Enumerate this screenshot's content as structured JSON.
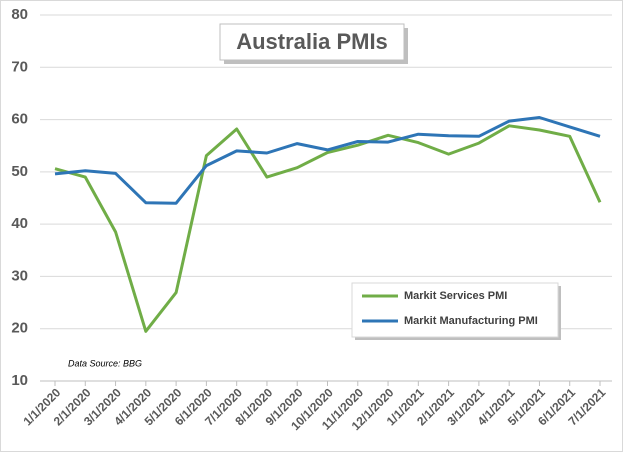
{
  "chart_data": {
    "type": "line",
    "title": "Australia PMIs",
    "annotation": "Data Source: BBG",
    "categories": [
      "1/1/2020",
      "2/1/2020",
      "3/1/2020",
      "4/1/2020",
      "5/1/2020",
      "6/1/2020",
      "7/1/2020",
      "8/1/2020",
      "9/1/2020",
      "10/1/2020",
      "11/1/2020",
      "12/1/2020",
      "1/1/2021",
      "2/1/2021",
      "3/1/2021",
      "4/1/2021",
      "5/1/2021",
      "6/1/2021",
      "7/1/2021"
    ],
    "series": [
      {
        "name": "Markit Services PMI",
        "color": "#70ad47",
        "values": [
          50.6,
          49.0,
          38.5,
          19.5,
          26.9,
          53.1,
          58.2,
          49.0,
          50.8,
          53.7,
          55.1,
          57.0,
          55.6,
          53.4,
          55.5,
          58.8,
          58.0,
          56.8,
          44.2
        ]
      },
      {
        "name": "Markit Manufacturing PMI",
        "color": "#2e75b6",
        "values": [
          49.6,
          50.2,
          49.7,
          44.1,
          44.0,
          51.2,
          54.0,
          53.6,
          55.4,
          54.2,
          55.8,
          55.7,
          57.2,
          56.9,
          56.8,
          59.7,
          60.4,
          58.6,
          56.8
        ]
      }
    ],
    "ylim": [
      10,
      80
    ],
    "yticks": [
      10,
      20,
      30,
      40,
      50,
      60,
      70,
      80
    ],
    "grid": true
  }
}
